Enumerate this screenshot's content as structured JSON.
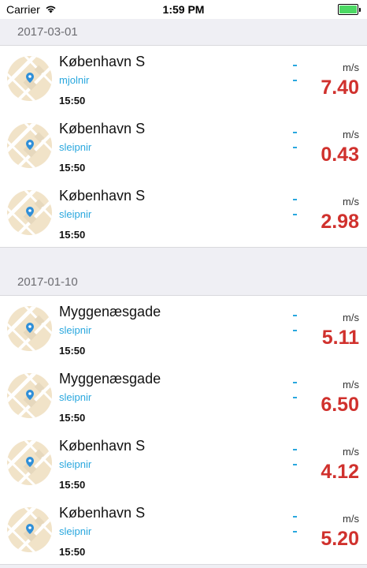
{
  "status_bar": {
    "carrier": "Carrier",
    "time": "1:59 PM"
  },
  "sections": [
    {
      "date": "2017-03-01",
      "items": [
        {
          "place": "København S",
          "user": "mjolnir",
          "time": "15:50",
          "unit": "m/s",
          "speed": "7.40"
        },
        {
          "place": "København S",
          "user": "sleipnir",
          "time": "15:50",
          "unit": "m/s",
          "speed": "0.43"
        },
        {
          "place": "København S",
          "user": "sleipnir",
          "time": "15:50",
          "unit": "m/s",
          "speed": "2.98"
        }
      ]
    },
    {
      "date": "2017-01-10",
      "items": [
        {
          "place": "Myggenæsgade",
          "user": "sleipnir",
          "time": "15:50",
          "unit": "m/s",
          "speed": "5.11"
        },
        {
          "place": "Myggenæsgade",
          "user": "sleipnir",
          "time": "15:50",
          "unit": "m/s",
          "speed": "6.50"
        },
        {
          "place": "København S",
          "user": "sleipnir",
          "time": "15:50",
          "unit": "m/s",
          "speed": "4.12"
        },
        {
          "place": "København S",
          "user": "sleipnir",
          "time": "15:50",
          "unit": "m/s",
          "speed": "5.20"
        }
      ]
    }
  ],
  "colors": {
    "speed": "#d0312d",
    "user": "#29a7de",
    "battery": "#4cd964"
  }
}
